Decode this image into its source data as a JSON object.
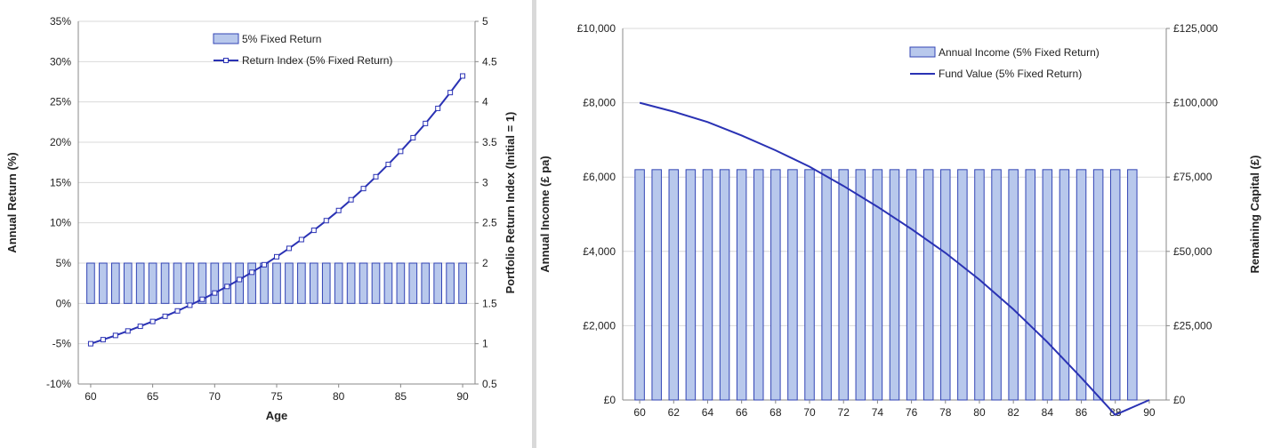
{
  "chart_data": [
    {
      "type": "bar",
      "xlabel": "Age",
      "ylabel": "Annual Return (%)",
      "y2label": "Portfolio Return Index (Initial = 1)",
      "x_ticks": [
        60,
        65,
        70,
        75,
        80,
        85,
        90
      ],
      "xlim": [
        59,
        91
      ],
      "ylim": [
        -10,
        35
      ],
      "y_ticks": [
        -10,
        -5,
        0,
        5,
        10,
        15,
        20,
        25,
        30,
        35
      ],
      "y_tick_labels": [
        "-10%",
        "-5%",
        "0%",
        "5%",
        "10%",
        "15%",
        "20%",
        "25%",
        "30%",
        "35%"
      ],
      "y2lim": [
        0.5,
        5
      ],
      "y2_ticks": [
        0.5,
        1,
        1.5,
        2,
        2.5,
        3,
        3.5,
        4,
        4.5,
        5
      ],
      "y2_tick_labels": [
        "0.5",
        "1",
        "1.5",
        "2",
        "2.5",
        "3",
        "3.5",
        "4",
        "4.5",
        "5"
      ],
      "legend_position": "top-center",
      "series": [
        {
          "name": "5% Fixed Return",
          "kind": "bar",
          "axis": "left",
          "x": [
            60,
            61,
            62,
            63,
            64,
            65,
            66,
            67,
            68,
            69,
            70,
            71,
            72,
            73,
            74,
            75,
            76,
            77,
            78,
            79,
            80,
            81,
            82,
            83,
            84,
            85,
            86,
            87,
            88,
            89,
            90
          ],
          "values": [
            5,
            5,
            5,
            5,
            5,
            5,
            5,
            5,
            5,
            5,
            5,
            5,
            5,
            5,
            5,
            5,
            5,
            5,
            5,
            5,
            5,
            5,
            5,
            5,
            5,
            5,
            5,
            5,
            5,
            5,
            5
          ]
        },
        {
          "name": "Return Index (5% Fixed Return)",
          "kind": "line-markers",
          "axis": "right",
          "x": [
            60,
            61,
            62,
            63,
            64,
            65,
            66,
            67,
            68,
            69,
            70,
            71,
            72,
            73,
            74,
            75,
            76,
            77,
            78,
            79,
            80,
            81,
            82,
            83,
            84,
            85,
            86,
            87,
            88,
            89,
            90
          ],
          "values": [
            1.0,
            1.05,
            1.1025,
            1.158,
            1.216,
            1.276,
            1.34,
            1.407,
            1.477,
            1.551,
            1.629,
            1.71,
            1.796,
            1.886,
            1.98,
            2.079,
            2.183,
            2.292,
            2.407,
            2.527,
            2.653,
            2.786,
            2.925,
            3.072,
            3.225,
            3.386,
            3.556,
            3.733,
            3.92,
            4.116,
            4.322
          ]
        }
      ],
      "colors": {
        "bar_fill": "#b8c8ec",
        "bar_stroke": "#3345b5",
        "line": "#2a32b4"
      }
    },
    {
      "type": "bar",
      "xlabel": "",
      "ylabel": "Annual Income (£ pa)",
      "y2label": "Remaining Capital (£)",
      "x_ticks": [
        60,
        62,
        64,
        66,
        68,
        70,
        72,
        74,
        76,
        78,
        80,
        82,
        84,
        86,
        88,
        90
      ],
      "xlim": [
        59,
        91
      ],
      "ylim": [
        0,
        10000
      ],
      "y_ticks": [
        0,
        2000,
        4000,
        6000,
        8000,
        10000
      ],
      "y_tick_labels": [
        "£0",
        "£2,000",
        "£4,000",
        "£6,000",
        "£8,000",
        "£10,000"
      ],
      "y2lim": [
        0,
        125000
      ],
      "y2_ticks": [
        0,
        25000,
        50000,
        75000,
        100000,
        125000
      ],
      "y2_tick_labels": [
        "£0",
        "£25,000",
        "£50,000",
        "£75,000",
        "£100,000",
        "£125,000"
      ],
      "legend_position": "top-right",
      "series": [
        {
          "name": "Annual Income (5% Fixed Return)",
          "kind": "bar",
          "axis": "left",
          "x": [
            60,
            61,
            62,
            63,
            64,
            65,
            66,
            67,
            68,
            69,
            70,
            71,
            72,
            73,
            74,
            75,
            76,
            77,
            78,
            79,
            80,
            81,
            82,
            83,
            84,
            85,
            86,
            87,
            88,
            89
          ],
          "values": [
            6200,
            6200,
            6200,
            6200,
            6200,
            6200,
            6200,
            6200,
            6200,
            6200,
            6200,
            6200,
            6200,
            6200,
            6200,
            6200,
            6200,
            6200,
            6200,
            6200,
            6200,
            6200,
            6200,
            6200,
            6200,
            6200,
            6200,
            6200,
            6200,
            6200
          ]
        },
        {
          "name": "Fund Value (5% Fixed Return)",
          "kind": "line",
          "axis": "right",
          "x": [
            60,
            62,
            64,
            66,
            68,
            70,
            72,
            74,
            76,
            78,
            80,
            82,
            84,
            86,
            88,
            90
          ],
          "values": [
            100000,
            97000,
            93500,
            89000,
            84000,
            78500,
            72000,
            65000,
            57500,
            49500,
            40500,
            30500,
            19500,
            7500,
            -5000,
            0
          ]
        }
      ],
      "colors": {
        "bar_fill": "#b8c8ec",
        "bar_stroke": "#3345b5",
        "line": "#2a32b4"
      }
    }
  ]
}
